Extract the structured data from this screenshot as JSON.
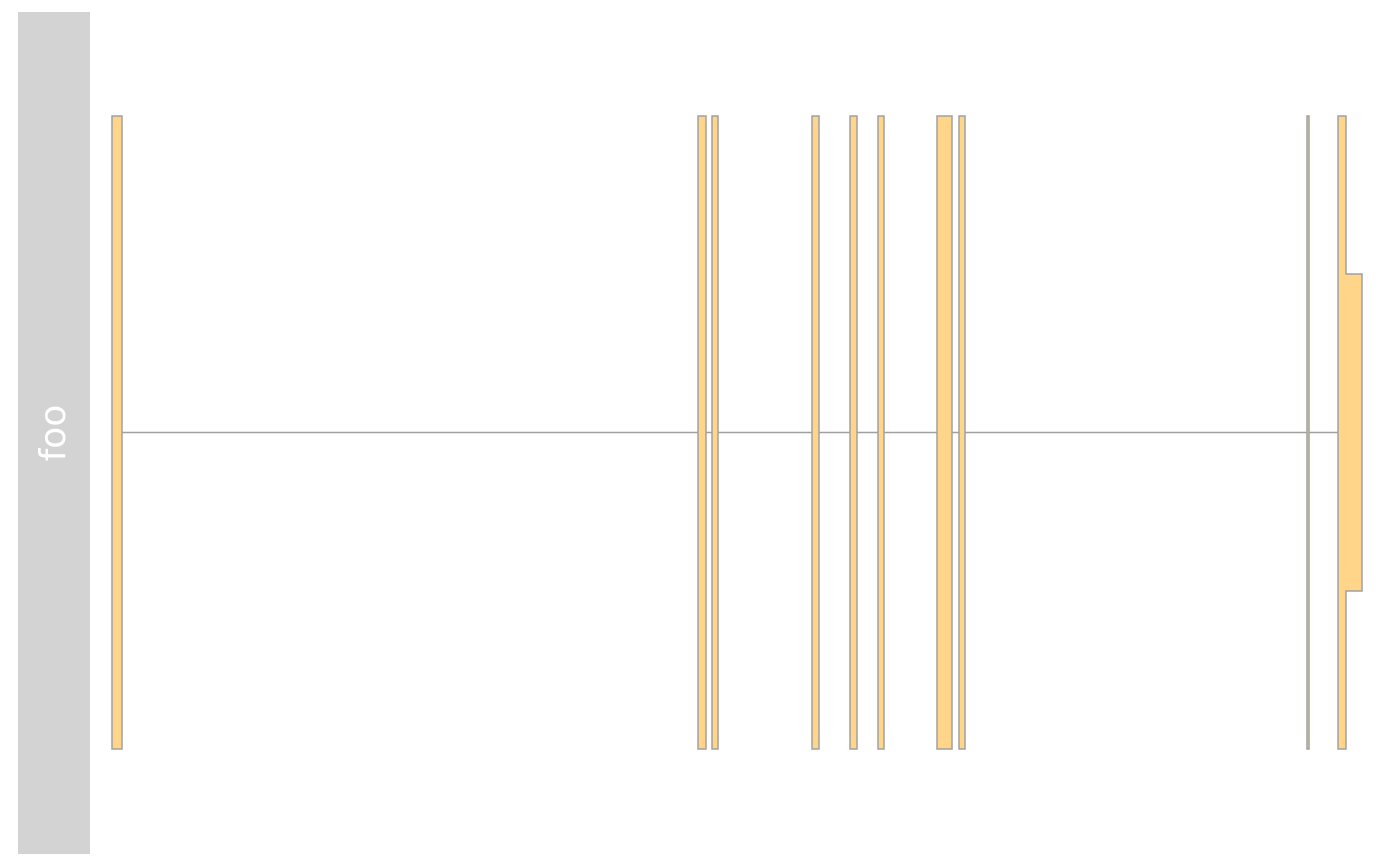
{
  "track": {
    "name": "foo"
  },
  "colors": {
    "panel_background": "#d3d3d3",
    "panel_text": "#ffffff",
    "exon_fill": "#ffd58a",
    "outline": "#a0a0a0",
    "intron_line": "#a0a0a0"
  },
  "gene_model": {
    "type": "transcript-track",
    "exons": [
      {
        "name": "exon-1"
      },
      {
        "name": "exon-2"
      },
      {
        "name": "exon-3"
      },
      {
        "name": "exon-4"
      },
      {
        "name": "exon-5"
      },
      {
        "name": "exon-6"
      },
      {
        "name": "exon-7"
      },
      {
        "name": "exon-8"
      },
      {
        "name": "exon-9"
      },
      {
        "name": "exon-10"
      }
    ]
  }
}
